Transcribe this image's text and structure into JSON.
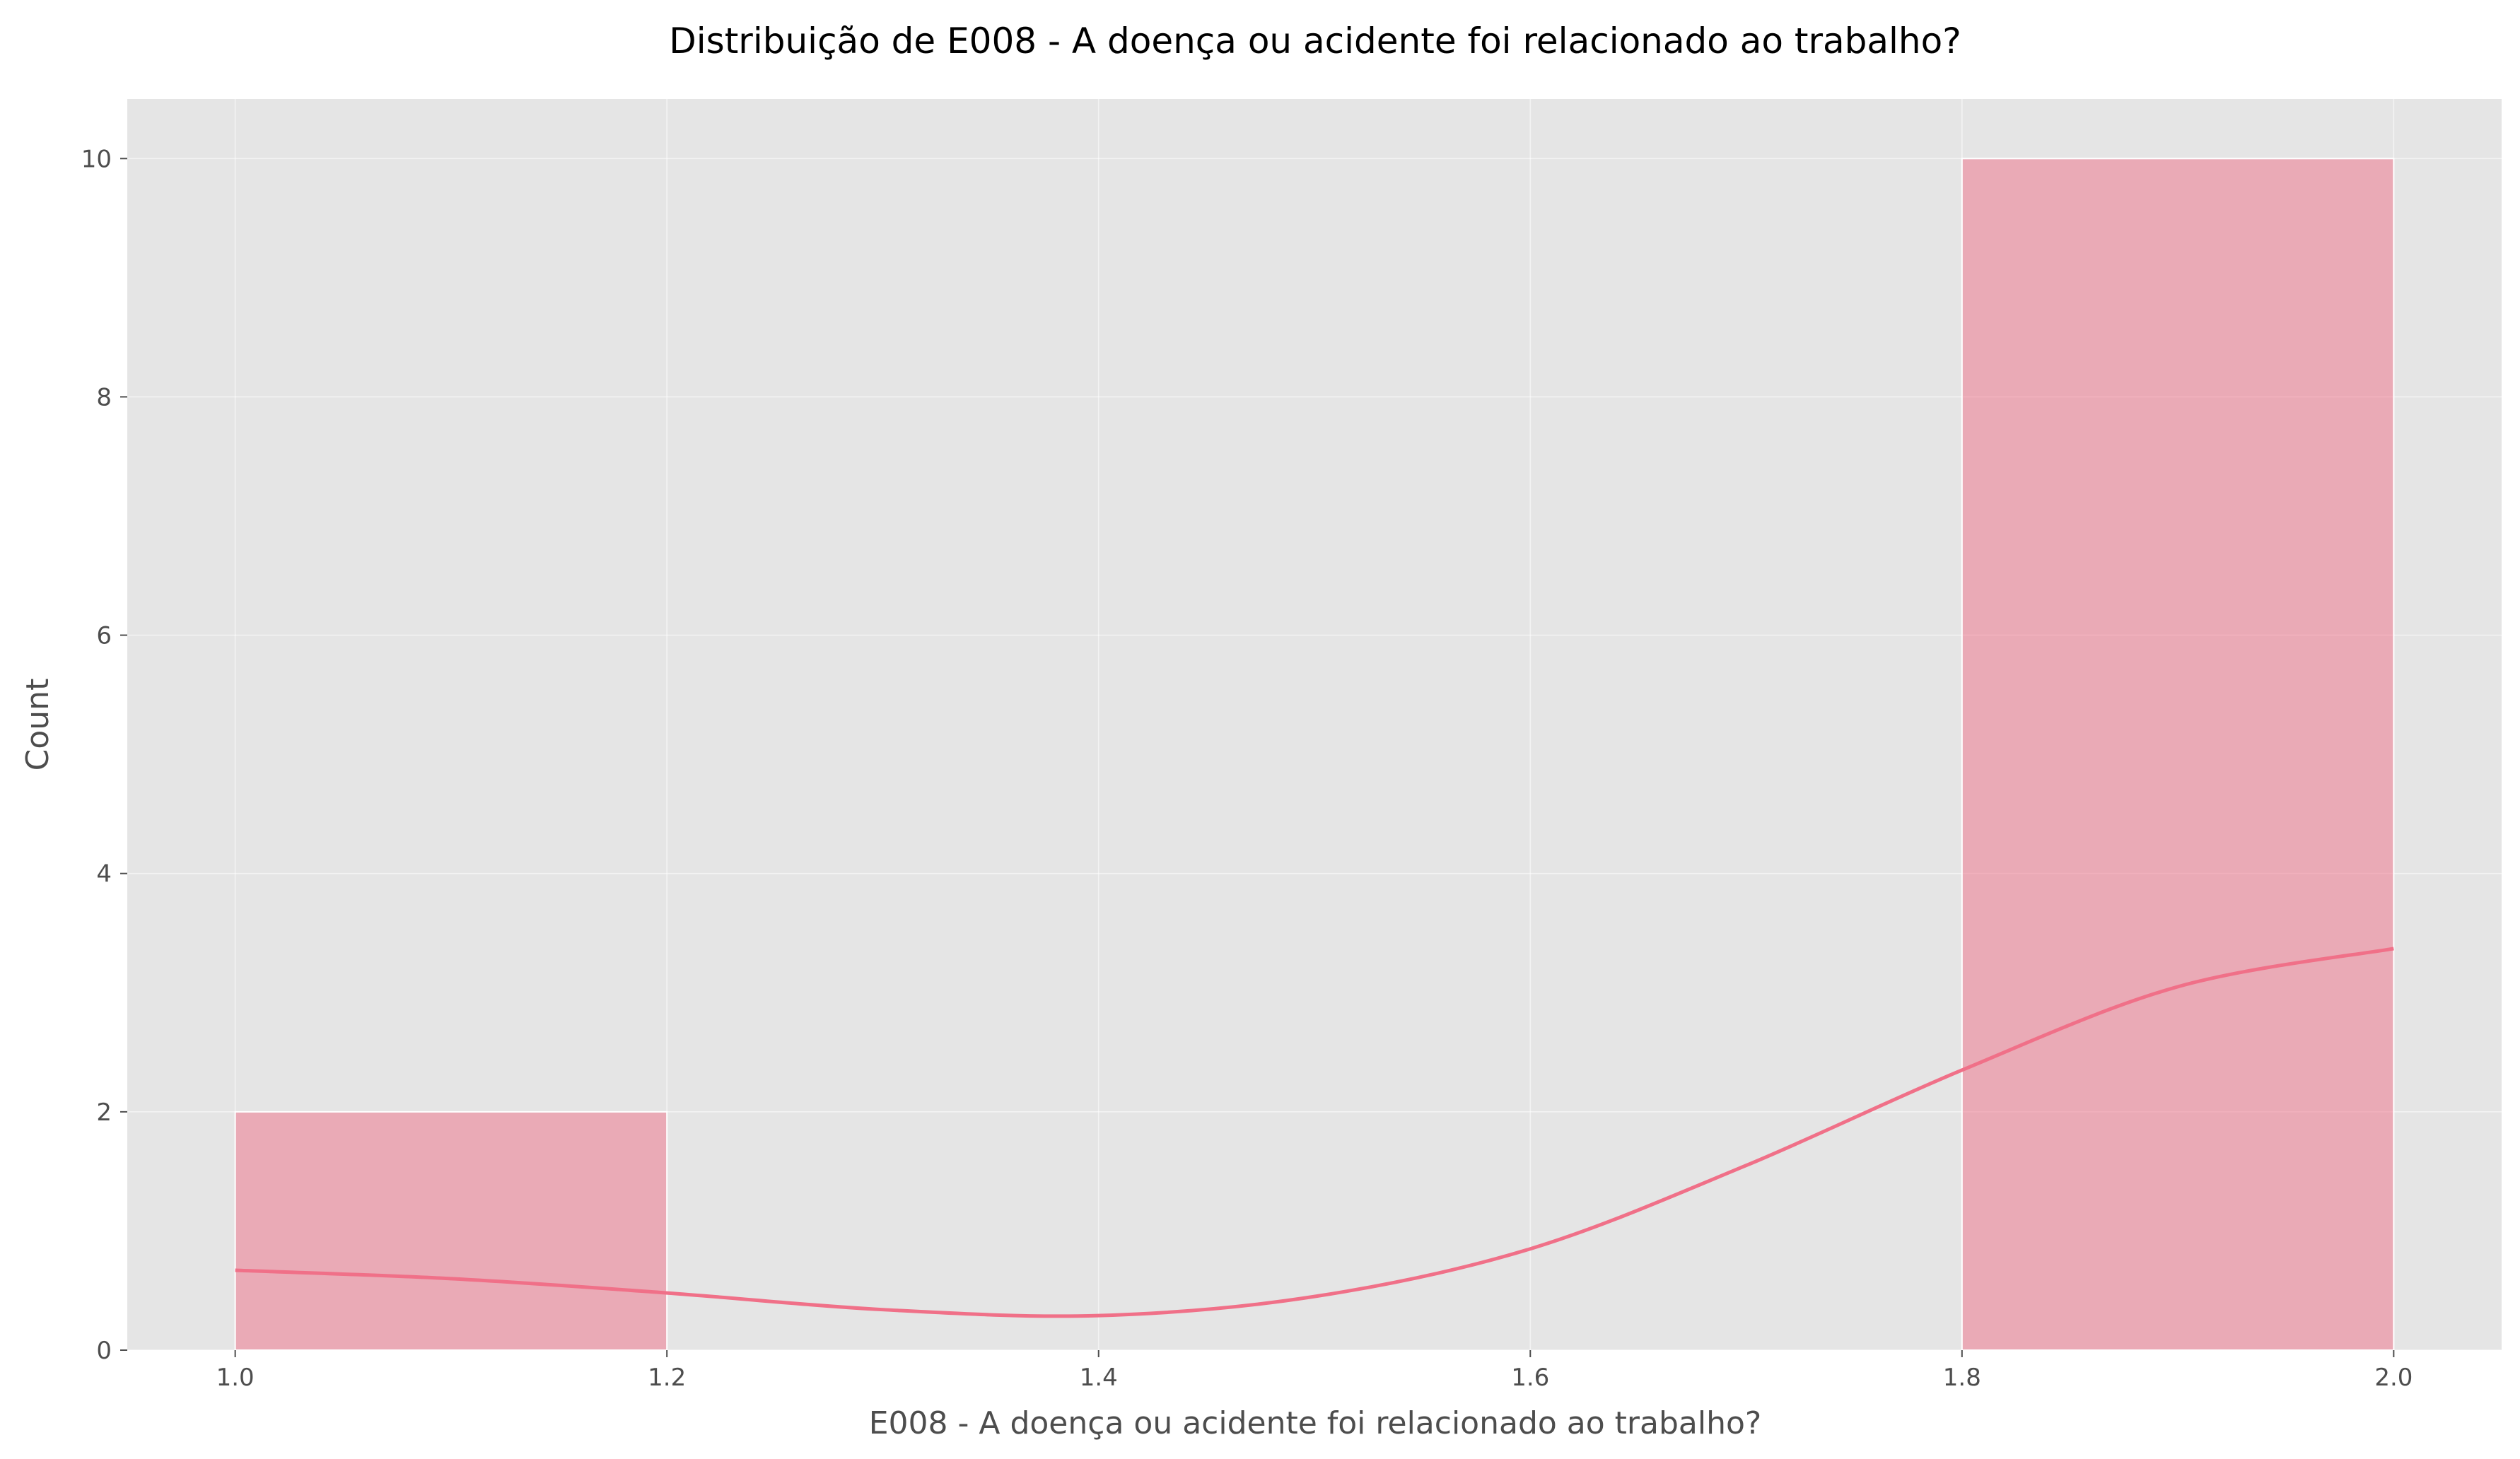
{
  "chart_data": {
    "type": "bar",
    "title": "Distribuição de E008 - A doença ou acidente foi relacionado ao trabalho?",
    "xlabel": "E008 - A doença ou acidente foi relacionado ao trabalho?",
    "ylabel": "Count",
    "xlim": [
      0.95,
      2.05
    ],
    "ylim": [
      0,
      10.5
    ],
    "x_ticks": [
      "1.0",
      "1.2",
      "1.4",
      "1.6",
      "1.8",
      "2.0"
    ],
    "x_tick_values": [
      1.0,
      1.2,
      1.4,
      1.6,
      1.8,
      2.0
    ],
    "y_ticks": [
      "0",
      "2",
      "4",
      "6",
      "8",
      "10"
    ],
    "y_tick_values": [
      0,
      2,
      4,
      6,
      8,
      10
    ],
    "bins": [
      {
        "x0": 1.0,
        "x1": 1.2,
        "count": 2
      },
      {
        "x0": 1.2,
        "x1": 1.4,
        "count": 0
      },
      {
        "x0": 1.4,
        "x1": 1.6,
        "count": 0
      },
      {
        "x0": 1.6,
        "x1": 1.8,
        "count": 0
      },
      {
        "x0": 1.8,
        "x1": 2.0,
        "count": 10
      }
    ],
    "kde": {
      "x": [
        1.0,
        1.1,
        1.2,
        1.3,
        1.4,
        1.5,
        1.6,
        1.7,
        1.8,
        1.9,
        2.0
      ],
      "y": [
        0.67,
        0.6,
        0.48,
        0.34,
        0.29,
        0.45,
        0.85,
        1.55,
        2.35,
        3.05,
        3.37
      ]
    },
    "grid": true,
    "legend": "none",
    "colors": {
      "bar": "#f07088",
      "kde": "#f07088",
      "plot_bg": "#e5e5e5"
    }
  }
}
